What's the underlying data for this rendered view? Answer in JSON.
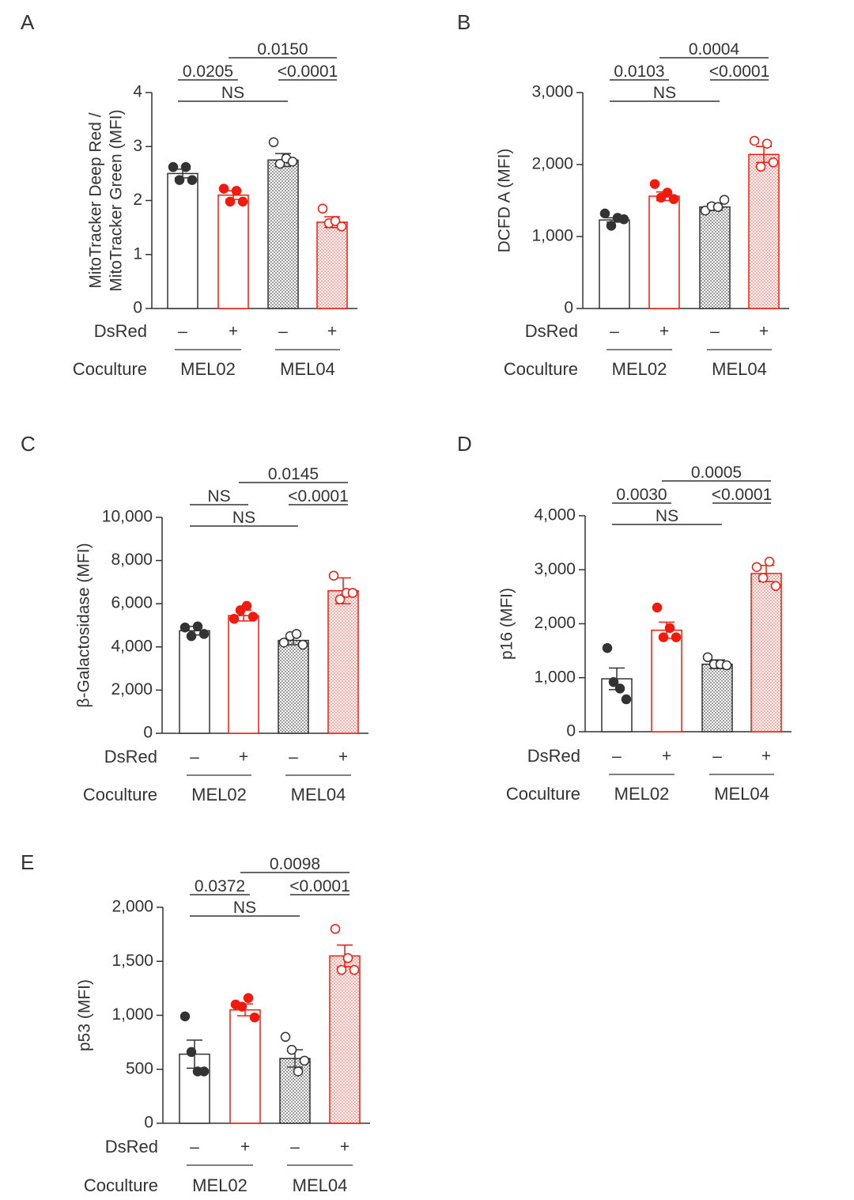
{
  "colors": {
    "black": "#333333",
    "red": "#f21a0c",
    "redlight": "#f26a5c",
    "grey": "#9a9a9a"
  },
  "chart_data": [
    {
      "type": "bar",
      "panel": "A",
      "ylabel_lines": [
        "MitoTracker Deep Red /",
        "MitoTracker Green (MFI)"
      ],
      "yticks": [
        0,
        1,
        2,
        3,
        4
      ],
      "ytick_labels": [
        "0",
        "1",
        "2",
        "3",
        "4"
      ],
      "ylim": [
        0,
        4
      ],
      "dsred_label": "DsRed",
      "coculture_label": "Coculture",
      "bar_signs": [
        "–",
        "+",
        "–",
        "+"
      ],
      "groups": [
        "MEL02",
        "MEL04"
      ],
      "categories": [
        "MEL02 DsRed–",
        "MEL02 DsRed+",
        "MEL04 DsRed–",
        "MEL04 DsRed+"
      ],
      "values": [
        2.5,
        2.1,
        2.75,
        1.6
      ],
      "sem": [
        0.08,
        0.08,
        0.12,
        0.1
      ],
      "points": [
        [
          2.62,
          2.38,
          2.62,
          2.38
        ],
        [
          2.22,
          1.98,
          2.18,
          1.98
        ],
        [
          3.08,
          2.68,
          2.78,
          2.72
        ],
        [
          1.85,
          1.58,
          1.62,
          1.52
        ]
      ],
      "significance": [
        {
          "label": "0.0150",
          "from": 2,
          "to": 4,
          "level": 3
        },
        {
          "label": "0.0205",
          "from": 1,
          "to": 2,
          "level": 2
        },
        {
          "label": "<0.0001",
          "from": 3,
          "to": 4,
          "level": 2
        },
        {
          "label": "NS",
          "from": 1,
          "to": 3,
          "level": 1
        }
      ]
    },
    {
      "type": "bar",
      "panel": "B",
      "ylabel_lines": [
        "DCFD A (MFI)"
      ],
      "yticks": [
        0,
        1000,
        2000,
        3000
      ],
      "ytick_labels": [
        "0",
        "1,000",
        "2,000",
        "3,000"
      ],
      "ylim": [
        0,
        3000
      ],
      "dsred_label": "DsRed",
      "coculture_label": "Coculture",
      "bar_signs": [
        "–",
        "+",
        "–",
        "+"
      ],
      "groups": [
        "MEL02",
        "MEL04"
      ],
      "categories": [
        "MEL02 DsRed–",
        "MEL02 DsRed+",
        "MEL04 DsRed–",
        "MEL04 DsRed+"
      ],
      "values": [
        1230,
        1560,
        1410,
        2140
      ],
      "sem": [
        30,
        60,
        45,
        110
      ],
      "points": [
        [
          1320,
          1150,
          1260,
          1240
        ],
        [
          1730,
          1540,
          1610,
          1520
        ],
        [
          1360,
          1420,
          1410,
          1510
        ],
        [
          2330,
          1970,
          2290,
          2030
        ]
      ],
      "significance": [
        {
          "label": "0.0004",
          "from": 2,
          "to": 4,
          "level": 3
        },
        {
          "label": "0.0103",
          "from": 1,
          "to": 2,
          "level": 2
        },
        {
          "label": "<0.0001",
          "from": 3,
          "to": 4,
          "level": 2
        },
        {
          "label": "NS",
          "from": 1,
          "to": 3,
          "level": 1
        }
      ]
    },
    {
      "type": "bar",
      "panel": "C",
      "ylabel_lines": [
        "β-Galactosidase (MFI)"
      ],
      "yticks": [
        0,
        2000,
        4000,
        6000,
        8000,
        10000
      ],
      "ytick_labels": [
        "0",
        "2,000",
        "4,000",
        "6,000",
        "8,000",
        "10,000"
      ],
      "ylim": [
        0,
        10000
      ],
      "dsred_label": "DsRed",
      "coculture_label": "Coculture",
      "bar_signs": [
        "–",
        "+",
        "–",
        "+"
      ],
      "groups": [
        "MEL02",
        "MEL04"
      ],
      "categories": [
        "MEL02 DsRed–",
        "MEL02 DsRed+",
        "MEL04 DsRed–",
        "MEL04 DsRed+"
      ],
      "values": [
        4750,
        5450,
        4300,
        6600
      ],
      "sem": [
        200,
        250,
        200,
        600
      ],
      "points": [
        [
          4900,
          4500,
          4950,
          4600
        ],
        [
          5300,
          5700,
          5900,
          5400
        ],
        [
          4200,
          4500,
          4600,
          4100
        ],
        [
          7300,
          6200,
          6500,
          6500
        ]
      ],
      "significance": [
        {
          "label": "0.0145",
          "from": 2,
          "to": 4,
          "level": 3
        },
        {
          "label": "NS",
          "from": 1,
          "to": 2,
          "level": 2
        },
        {
          "label": "<0.0001",
          "from": 3,
          "to": 4,
          "level": 2
        },
        {
          "label": "NS",
          "from": 1,
          "to": 3,
          "level": 1
        }
      ]
    },
    {
      "type": "bar",
      "panel": "D",
      "ylabel_lines": [
        "p16 (MFI)"
      ],
      "yticks": [
        0,
        1000,
        2000,
        3000,
        4000
      ],
      "ytick_labels": [
        "0",
        "1,000",
        "2,000",
        "3,000",
        "4,000"
      ],
      "ylim": [
        0,
        4000
      ],
      "dsred_label": "DsRed",
      "coculture_label": "Coculture",
      "bar_signs": [
        "–",
        "+",
        "–",
        "+"
      ],
      "groups": [
        "MEL02",
        "MEL04"
      ],
      "categories": [
        "MEL02 DsRed–",
        "MEL02 DsRed+",
        "MEL04 DsRed–",
        "MEL04 DsRed+"
      ],
      "values": [
        980,
        1880,
        1250,
        2930
      ],
      "sem": [
        200,
        150,
        80,
        150
      ],
      "points": [
        [
          1550,
          920,
          800,
          600
        ],
        [
          2300,
          1750,
          1920,
          1750
        ],
        [
          1380,
          1250,
          1250,
          1230
        ],
        [
          3050,
          2850,
          3150,
          2700
        ]
      ],
      "significance": [
        {
          "label": "0.0005",
          "from": 2,
          "to": 4,
          "level": 3
        },
        {
          "label": "0.0030",
          "from": 1,
          "to": 2,
          "level": 2
        },
        {
          "label": "<0.0001",
          "from": 3,
          "to": 4,
          "level": 2
        },
        {
          "label": "NS",
          "from": 1,
          "to": 3,
          "level": 1
        }
      ]
    },
    {
      "type": "bar",
      "panel": "E",
      "ylabel_lines": [
        "p53 (MFI)"
      ],
      "yticks": [
        0,
        500,
        1000,
        1500,
        2000
      ],
      "ytick_labels": [
        "0",
        "500",
        "1,000",
        "1,500",
        "2,000"
      ],
      "ylim": [
        0,
        2000
      ],
      "dsred_label": "DsRed",
      "coculture_label": "Coculture",
      "bar_signs": [
        "–",
        "+",
        "–",
        "+"
      ],
      "groups": [
        "MEL02",
        "MEL04"
      ],
      "categories": [
        "MEL02 DsRed–",
        "MEL02 DsRed+",
        "MEL04 DsRed–",
        "MEL04 DsRed+"
      ],
      "values": [
        640,
        1050,
        600,
        1550
      ],
      "sem": [
        130,
        55,
        80,
        100
      ],
      "points": [
        [
          990,
          660,
          480,
          480
        ],
        [
          1100,
          1080,
          1160,
          980
        ],
        [
          800,
          680,
          480,
          580
        ],
        [
          1800,
          1420,
          1530,
          1420
        ]
      ],
      "significance": [
        {
          "label": "0.0098",
          "from": 2,
          "to": 4,
          "level": 3
        },
        {
          "label": "0.0372",
          "from": 1,
          "to": 2,
          "level": 2
        },
        {
          "label": "<0.0001",
          "from": 3,
          "to": 4,
          "level": 2
        },
        {
          "label": "NS",
          "from": 1,
          "to": 3,
          "level": 1
        }
      ]
    }
  ]
}
